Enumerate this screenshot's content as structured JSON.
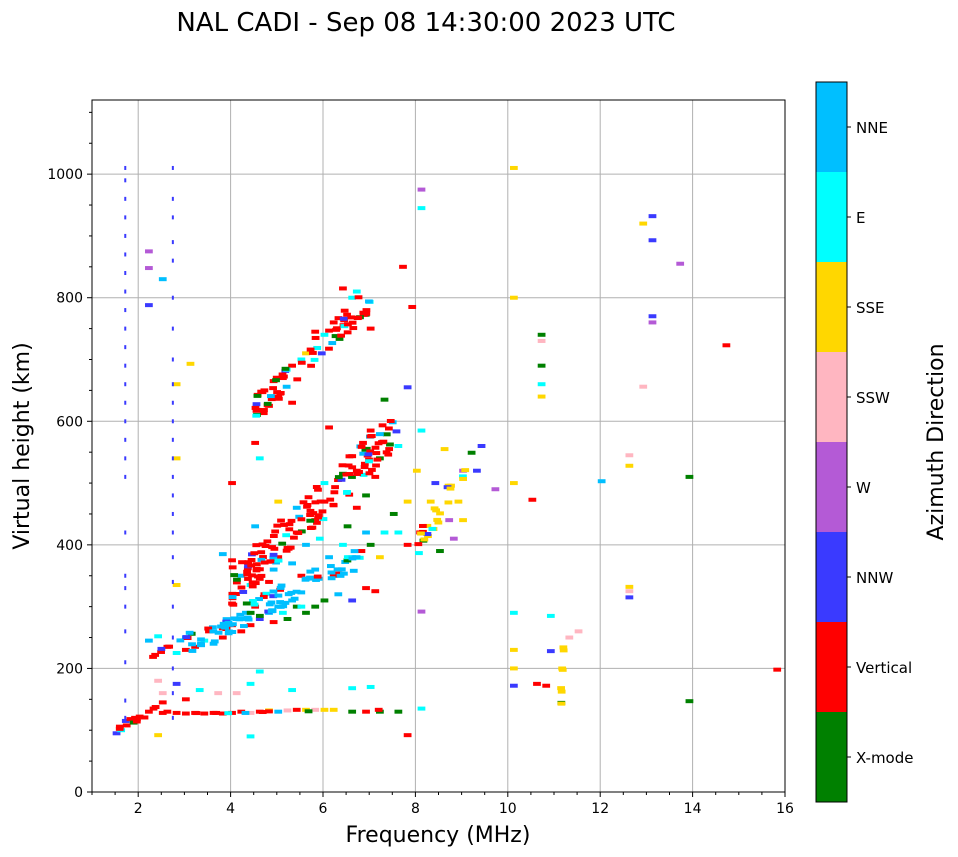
{
  "chart_data": {
    "type": "scatter",
    "title": "NAL CADI - Sep 08 14:30:00 2023 UTC",
    "xlabel": "Frequency (MHz)",
    "ylabel": "Virtual height (km)",
    "xlim": [
      1,
      16
    ],
    "ylim": [
      0,
      1120
    ],
    "xticks": [
      2,
      4,
      6,
      8,
      10,
      12,
      14,
      16
    ],
    "yticks": [
      0,
      200,
      400,
      600,
      800,
      1000
    ],
    "grid": true,
    "colorbar": {
      "label": "Azimuth Direction",
      "categories": [
        {
          "name": "X-mode",
          "color": "#008000"
        },
        {
          "name": "Vertical",
          "color": "#ff0000"
        },
        {
          "name": "NNW",
          "color": "#3a3aff"
        },
        {
          "name": "W",
          "color": "#b45ad6"
        },
        {
          "name": "SSW",
          "color": "#ffb6c1"
        },
        {
          "name": "SSE",
          "color": "#ffd700"
        },
        {
          "name": "E",
          "color": "#00ffff"
        },
        {
          "name": "NNE",
          "color": "#00bfff"
        }
      ]
    },
    "traces": [
      {
        "x0": 1.5,
        "x1": 2.4,
        "y0": 95,
        "y1": 140,
        "dir": "Vertical"
      },
      {
        "x0": 2.4,
        "x1": 7.8,
        "y0": 125,
        "y1": 135,
        "dir": "Vertical"
      },
      {
        "x0": 2.2,
        "x1": 3.2,
        "y0": 215,
        "y1": 260,
        "dir": "Vertical"
      },
      {
        "x0": 3.0,
        "x1": 6.8,
        "y0": 220,
        "y1": 400,
        "dir": "NNE"
      },
      {
        "x0": 4.0,
        "x1": 7.6,
        "y0": 300,
        "y1": 620,
        "dir": "Vertical"
      },
      {
        "x0": 4.5,
        "x1": 7.0,
        "y0": 600,
        "y1": 820,
        "dir": "Vertical"
      },
      {
        "x0": 8.0,
        "x1": 9.2,
        "y0": 380,
        "y1": 560,
        "dir": "SSE"
      },
      {
        "x0": 11.1,
        "x1": 11.2,
        "y0": 88,
        "y1": 310,
        "dir": "SSE"
      }
    ],
    "points": [
      {
        "x": 1.5,
        "y": 95,
        "dir": "NNW"
      },
      {
        "x": 1.6,
        "y": 100,
        "dir": "E"
      },
      {
        "x": 1.7,
        "y": 115,
        "dir": "NNW"
      },
      {
        "x": 1.8,
        "y": 118,
        "dir": "Vertical"
      },
      {
        "x": 1.9,
        "y": 120,
        "dir": "Vertical"
      },
      {
        "x": 2.0,
        "y": 122,
        "dir": "Vertical"
      },
      {
        "x": 2.2,
        "y": 130,
        "dir": "Vertical"
      },
      {
        "x": 2.3,
        "y": 135,
        "dir": "Vertical"
      },
      {
        "x": 2.4,
        "y": 92,
        "dir": "SSE"
      },
      {
        "x": 2.5,
        "y": 128,
        "dir": "Vertical"
      },
      {
        "x": 2.6,
        "y": 130,
        "dir": "Vertical"
      },
      {
        "x": 2.8,
        "y": 128,
        "dir": "Vertical"
      },
      {
        "x": 3.0,
        "y": 127,
        "dir": "Vertical"
      },
      {
        "x": 3.2,
        "y": 128,
        "dir": "Vertical"
      },
      {
        "x": 3.4,
        "y": 127,
        "dir": "Vertical"
      },
      {
        "x": 3.6,
        "y": 128,
        "dir": "Vertical"
      },
      {
        "x": 3.8,
        "y": 127,
        "dir": "Vertical"
      },
      {
        "x": 4.0,
        "y": 128,
        "dir": "Vertical"
      },
      {
        "x": 4.2,
        "y": 130,
        "dir": "Vertical"
      },
      {
        "x": 4.4,
        "y": 128,
        "dir": "SSW"
      },
      {
        "x": 4.6,
        "y": 130,
        "dir": "Vertical"
      },
      {
        "x": 4.8,
        "y": 132,
        "dir": "SSE"
      },
      {
        "x": 5.0,
        "y": 130,
        "dir": "NNE"
      },
      {
        "x": 5.2,
        "y": 132,
        "dir": "SSW"
      },
      {
        "x": 5.4,
        "y": 133,
        "dir": "Vertical"
      },
      {
        "x": 5.6,
        "y": 133,
        "dir": "SSE"
      },
      {
        "x": 5.8,
        "y": 133,
        "dir": "SSW"
      },
      {
        "x": 6.0,
        "y": 133,
        "dir": "SSE"
      },
      {
        "x": 6.2,
        "y": 133,
        "dir": "SSE"
      },
      {
        "x": 6.6,
        "y": 130,
        "dir": "X-mode"
      },
      {
        "x": 6.9,
        "y": 130,
        "dir": "Vertical"
      },
      {
        "x": 7.2,
        "y": 130,
        "dir": "X-mode"
      },
      {
        "x": 7.6,
        "y": 130,
        "dir": "X-mode"
      },
      {
        "x": 2.4,
        "y": 180,
        "dir": "SSW"
      },
      {
        "x": 2.5,
        "y": 160,
        "dir": "SSW"
      },
      {
        "x": 2.5,
        "y": 145,
        "dir": "Vertical"
      },
      {
        "x": 2.8,
        "y": 175,
        "dir": "NNW"
      },
      {
        "x": 3.0,
        "y": 150,
        "dir": "Vertical"
      },
      {
        "x": 3.3,
        "y": 165,
        "dir": "E"
      },
      {
        "x": 3.7,
        "y": 160,
        "dir": "SSW"
      },
      {
        "x": 4.1,
        "y": 160,
        "dir": "SSW"
      },
      {
        "x": 4.6,
        "y": 195,
        "dir": "E"
      },
      {
        "x": 4.4,
        "y": 175,
        "dir": "E"
      },
      {
        "x": 5.3,
        "y": 165,
        "dir": "E"
      },
      {
        "x": 6.6,
        "y": 168,
        "dir": "E"
      },
      {
        "x": 7.0,
        "y": 170,
        "dir": "E"
      },
      {
        "x": 4.4,
        "y": 90,
        "dir": "E"
      },
      {
        "x": 7.8,
        "y": 92,
        "dir": "Vertical"
      },
      {
        "x": 8.1,
        "y": 135,
        "dir": "E"
      },
      {
        "x": 2.2,
        "y": 245,
        "dir": "NNE"
      },
      {
        "x": 2.4,
        "y": 252,
        "dir": "E"
      },
      {
        "x": 2.6,
        "y": 235,
        "dir": "Vertical"
      },
      {
        "x": 2.8,
        "y": 225,
        "dir": "E"
      },
      {
        "x": 3.0,
        "y": 230,
        "dir": "Vertical"
      },
      {
        "x": 3.0,
        "y": 250,
        "dir": "NNE"
      },
      {
        "x": 3.2,
        "y": 235,
        "dir": "Vertical"
      },
      {
        "x": 3.4,
        "y": 245,
        "dir": "E"
      },
      {
        "x": 3.5,
        "y": 260,
        "dir": "Vertical"
      },
      {
        "x": 3.6,
        "y": 240,
        "dir": "NNE"
      },
      {
        "x": 3.8,
        "y": 265,
        "dir": "Vertical"
      },
      {
        "x": 3.8,
        "y": 250,
        "dir": "Vertical"
      },
      {
        "x": 4.0,
        "y": 270,
        "dir": "Vertical"
      },
      {
        "x": 4.0,
        "y": 305,
        "dir": "Vertical"
      },
      {
        "x": 4.1,
        "y": 280,
        "dir": "NNE"
      },
      {
        "x": 4.2,
        "y": 260,
        "dir": "Vertical"
      },
      {
        "x": 4.3,
        "y": 290,
        "dir": "NNE"
      },
      {
        "x": 4.4,
        "y": 270,
        "dir": "Vertical"
      },
      {
        "x": 4.5,
        "y": 300,
        "dir": "Vertical"
      },
      {
        "x": 4.6,
        "y": 280,
        "dir": "NNW"
      },
      {
        "x": 4.7,
        "y": 320,
        "dir": "Vertical"
      },
      {
        "x": 4.8,
        "y": 290,
        "dir": "NNE"
      },
      {
        "x": 4.9,
        "y": 275,
        "dir": "Vertical"
      },
      {
        "x": 5.0,
        "y": 300,
        "dir": "NNE"
      },
      {
        "x": 5.1,
        "y": 290,
        "dir": "E"
      },
      {
        "x": 5.2,
        "y": 280,
        "dir": "X-mode"
      },
      {
        "x": 5.3,
        "y": 310,
        "dir": "NNE"
      },
      {
        "x": 5.4,
        "y": 300,
        "dir": "X-mode"
      },
      {
        "x": 5.5,
        "y": 300,
        "dir": "E"
      },
      {
        "x": 5.6,
        "y": 290,
        "dir": "X-mode"
      },
      {
        "x": 5.8,
        "y": 300,
        "dir": "X-mode"
      },
      {
        "x": 6.0,
        "y": 310,
        "dir": "X-mode"
      },
      {
        "x": 6.3,
        "y": 320,
        "dir": "NNE"
      },
      {
        "x": 6.6,
        "y": 310,
        "dir": "NNW"
      },
      {
        "x": 6.9,
        "y": 330,
        "dir": "Vertical"
      },
      {
        "x": 7.1,
        "y": 325,
        "dir": "Vertical"
      },
      {
        "x": 3.8,
        "y": 385,
        "dir": "NNE"
      },
      {
        "x": 4.0,
        "y": 375,
        "dir": "Vertical"
      },
      {
        "x": 4.2,
        "y": 350,
        "dir": "NNE"
      },
      {
        "x": 4.4,
        "y": 335,
        "dir": "E"
      },
      {
        "x": 4.6,
        "y": 345,
        "dir": "Vertical"
      },
      {
        "x": 4.8,
        "y": 340,
        "dir": "Vertical"
      },
      {
        "x": 4.9,
        "y": 360,
        "dir": "NNE"
      },
      {
        "x": 5.0,
        "y": 380,
        "dir": "Vertical"
      },
      {
        "x": 5.2,
        "y": 395,
        "dir": "Vertical"
      },
      {
        "x": 5.3,
        "y": 370,
        "dir": "NNE"
      },
      {
        "x": 5.4,
        "y": 420,
        "dir": "Vertical"
      },
      {
        "x": 5.5,
        "y": 350,
        "dir": "Vertical"
      },
      {
        "x": 5.6,
        "y": 400,
        "dir": "NNE"
      },
      {
        "x": 5.8,
        "y": 360,
        "dir": "NNE"
      },
      {
        "x": 5.8,
        "y": 440,
        "dir": "Vertical"
      },
      {
        "x": 5.9,
        "y": 410,
        "dir": "E"
      },
      {
        "x": 6.0,
        "y": 470,
        "dir": "Vertical"
      },
      {
        "x": 6.1,
        "y": 380,
        "dir": "NNE"
      },
      {
        "x": 6.2,
        "y": 350,
        "dir": "Vertical"
      },
      {
        "x": 6.4,
        "y": 400,
        "dir": "E"
      },
      {
        "x": 6.5,
        "y": 430,
        "dir": "X-mode"
      },
      {
        "x": 6.6,
        "y": 380,
        "dir": "NNE"
      },
      {
        "x": 6.7,
        "y": 460,
        "dir": "Vertical"
      },
      {
        "x": 6.8,
        "y": 390,
        "dir": "Vertical"
      },
      {
        "x": 6.9,
        "y": 420,
        "dir": "NNE"
      },
      {
        "x": 7.0,
        "y": 400,
        "dir": "X-mode"
      },
      {
        "x": 7.2,
        "y": 380,
        "dir": "SSE"
      },
      {
        "x": 7.3,
        "y": 420,
        "dir": "E"
      },
      {
        "x": 7.5,
        "y": 450,
        "dir": "X-mode"
      },
      {
        "x": 7.6,
        "y": 420,
        "dir": "E"
      },
      {
        "x": 7.8,
        "y": 400,
        "dir": "Vertical"
      },
      {
        "x": 7.8,
        "y": 470,
        "dir": "SSE"
      },
      {
        "x": 4.5,
        "y": 430,
        "dir": "NNE"
      },
      {
        "x": 5.0,
        "y": 470,
        "dir": "SSE"
      },
      {
        "x": 5.4,
        "y": 460,
        "dir": "NNE"
      },
      {
        "x": 6.0,
        "y": 500,
        "dir": "E"
      },
      {
        "x": 6.1,
        "y": 590,
        "dir": "Vertical"
      },
      {
        "x": 6.4,
        "y": 515,
        "dir": "X-mode"
      },
      {
        "x": 6.7,
        "y": 520,
        "dir": "Vertical"
      },
      {
        "x": 6.9,
        "y": 480,
        "dir": "X-mode"
      },
      {
        "x": 7.1,
        "y": 510,
        "dir": "Vertical"
      },
      {
        "x": 7.2,
        "y": 540,
        "dir": "X-mode"
      },
      {
        "x": 7.6,
        "y": 560,
        "dir": "E"
      },
      {
        "x": 7.4,
        "y": 555,
        "dir": "Vertical"
      },
      {
        "x": 7.0,
        "y": 585,
        "dir": "Vertical"
      },
      {
        "x": 4.0,
        "y": 500,
        "dir": "Vertical"
      },
      {
        "x": 4.5,
        "y": 565,
        "dir": "Vertical"
      },
      {
        "x": 4.6,
        "y": 540,
        "dir": "E"
      },
      {
        "x": 4.7,
        "y": 650,
        "dir": "Vertical"
      },
      {
        "x": 4.9,
        "y": 665,
        "dir": "Vertical"
      },
      {
        "x": 5.1,
        "y": 670,
        "dir": "Vertical"
      },
      {
        "x": 5.3,
        "y": 690,
        "dir": "Vertical"
      },
      {
        "x": 5.5,
        "y": 700,
        "dir": "E"
      },
      {
        "x": 5.6,
        "y": 710,
        "dir": "SSE"
      },
      {
        "x": 5.8,
        "y": 745,
        "dir": "Vertical"
      },
      {
        "x": 6.0,
        "y": 740,
        "dir": "E"
      },
      {
        "x": 6.2,
        "y": 760,
        "dir": "Vertical"
      },
      {
        "x": 6.4,
        "y": 815,
        "dir": "Vertical"
      },
      {
        "x": 6.6,
        "y": 800,
        "dir": "E"
      },
      {
        "x": 7.0,
        "y": 750,
        "dir": "Vertical"
      },
      {
        "x": 4.8,
        "y": 625,
        "dir": "Vertical"
      },
      {
        "x": 5.0,
        "y": 640,
        "dir": "Vertical"
      },
      {
        "x": 5.3,
        "y": 630,
        "dir": "Vertical"
      },
      {
        "x": 7.3,
        "y": 635,
        "dir": "X-mode"
      },
      {
        "x": 7.8,
        "y": 655,
        "dir": "NNW"
      },
      {
        "x": 7.7,
        "y": 850,
        "dir": "Vertical"
      },
      {
        "x": 7.9,
        "y": 785,
        "dir": "Vertical"
      },
      {
        "x": 6.7,
        "y": 810,
        "dir": "E"
      },
      {
        "x": 8.0,
        "y": 520,
        "dir": "SSE"
      },
      {
        "x": 8.1,
        "y": 585,
        "dir": "E"
      },
      {
        "x": 8.3,
        "y": 470,
        "dir": "SSE"
      },
      {
        "x": 8.4,
        "y": 500,
        "dir": "NNW"
      },
      {
        "x": 8.5,
        "y": 390,
        "dir": "X-mode"
      },
      {
        "x": 8.6,
        "y": 555,
        "dir": "SSE"
      },
      {
        "x": 8.7,
        "y": 440,
        "dir": "W"
      },
      {
        "x": 8.8,
        "y": 410,
        "dir": "W"
      },
      {
        "x": 8.9,
        "y": 470,
        "dir": "SSE"
      },
      {
        "x": 9.0,
        "y": 440,
        "dir": "SSE"
      },
      {
        "x": 9.0,
        "y": 520,
        "dir": "W"
      },
      {
        "x": 9.3,
        "y": 520,
        "dir": "NNW"
      },
      {
        "x": 9.4,
        "y": 560,
        "dir": "NNW"
      },
      {
        "x": 9.7,
        "y": 490,
        "dir": "W"
      },
      {
        "x": 8.1,
        "y": 945,
        "dir": "E"
      },
      {
        "x": 8.1,
        "y": 975,
        "dir": "W"
      },
      {
        "x": 8.1,
        "y": 292,
        "dir": "W"
      },
      {
        "x": 10.1,
        "y": 1010,
        "dir": "SSE"
      },
      {
        "x": 10.1,
        "y": 800,
        "dir": "SSE"
      },
      {
        "x": 10.1,
        "y": 500,
        "dir": "SSE"
      },
      {
        "x": 10.1,
        "y": 290,
        "dir": "E"
      },
      {
        "x": 10.1,
        "y": 230,
        "dir": "SSE"
      },
      {
        "x": 10.1,
        "y": 200,
        "dir": "SSE"
      },
      {
        "x": 10.1,
        "y": 172,
        "dir": "NNW"
      },
      {
        "x": 10.6,
        "y": 175,
        "dir": "Vertical"
      },
      {
        "x": 10.8,
        "y": 172,
        "dir": "Vertical"
      },
      {
        "x": 10.9,
        "y": 228,
        "dir": "NNW"
      },
      {
        "x": 10.9,
        "y": 285,
        "dir": "E"
      },
      {
        "x": 10.5,
        "y": 473,
        "dir": "Vertical"
      },
      {
        "x": 10.7,
        "y": 740,
        "dir": "X-mode"
      },
      {
        "x": 10.7,
        "y": 730,
        "dir": "SSW"
      },
      {
        "x": 10.7,
        "y": 690,
        "dir": "X-mode"
      },
      {
        "x": 10.7,
        "y": 660,
        "dir": "E"
      },
      {
        "x": 10.7,
        "y": 640,
        "dir": "SSE"
      },
      {
        "x": 11.3,
        "y": 250,
        "dir": "SSW"
      },
      {
        "x": 11.5,
        "y": 260,
        "dir": "SSW"
      },
      {
        "x": 12.0,
        "y": 503,
        "dir": "NNE"
      },
      {
        "x": 12.6,
        "y": 545,
        "dir": "SSW"
      },
      {
        "x": 12.6,
        "y": 528,
        "dir": "SSE"
      },
      {
        "x": 12.6,
        "y": 332,
        "dir": "SSE"
      },
      {
        "x": 12.6,
        "y": 325,
        "dir": "SSW"
      },
      {
        "x": 12.6,
        "y": 315,
        "dir": "NNW"
      },
      {
        "x": 12.9,
        "y": 920,
        "dir": "SSE"
      },
      {
        "x": 13.1,
        "y": 932,
        "dir": "NNW"
      },
      {
        "x": 13.1,
        "y": 893,
        "dir": "NNW"
      },
      {
        "x": 13.1,
        "y": 770,
        "dir": "NNW"
      },
      {
        "x": 13.1,
        "y": 760,
        "dir": "W"
      },
      {
        "x": 12.9,
        "y": 656,
        "dir": "SSW"
      },
      {
        "x": 13.7,
        "y": 855,
        "dir": "W"
      },
      {
        "x": 13.9,
        "y": 510,
        "dir": "X-mode"
      },
      {
        "x": 13.9,
        "y": 147,
        "dir": "X-mode"
      },
      {
        "x": 14.7,
        "y": 723,
        "dir": "Vertical"
      },
      {
        "x": 15.8,
        "y": 198,
        "dir": "Vertical"
      },
      {
        "x": 3.1,
        "y": 693,
        "dir": "SSE"
      },
      {
        "x": 2.2,
        "y": 875,
        "dir": "W"
      },
      {
        "x": 2.2,
        "y": 848,
        "dir": "W"
      },
      {
        "x": 2.2,
        "y": 788,
        "dir": "NNW"
      },
      {
        "x": 2.5,
        "y": 830,
        "dir": "NNE"
      },
      {
        "x": 2.8,
        "y": 660,
        "dir": "SSE"
      },
      {
        "x": 2.8,
        "y": 540,
        "dir": "SSE"
      },
      {
        "x": 2.8,
        "y": 335,
        "dir": "SSE"
      }
    ],
    "column_streaks": [
      {
        "x": 1.72,
        "y": [
          120,
          148,
          210,
          260,
          300,
          330,
          350,
          420,
          510,
          540,
          570,
          600,
          630,
          660,
          690,
          720,
          750,
          780,
          810,
          840,
          870,
          900,
          930,
          960,
          990,
          1010
        ],
        "dir": "NNW"
      },
      {
        "x": 2.75,
        "y": [
          120,
          160,
          200,
          250,
          300,
          340,
          380,
          420,
          450,
          480,
          510,
          540,
          570,
          600,
          630,
          660,
          700,
          750,
          800,
          860,
          890,
          930,
          960,
          1010
        ],
        "dir": "NNW"
      }
    ]
  }
}
